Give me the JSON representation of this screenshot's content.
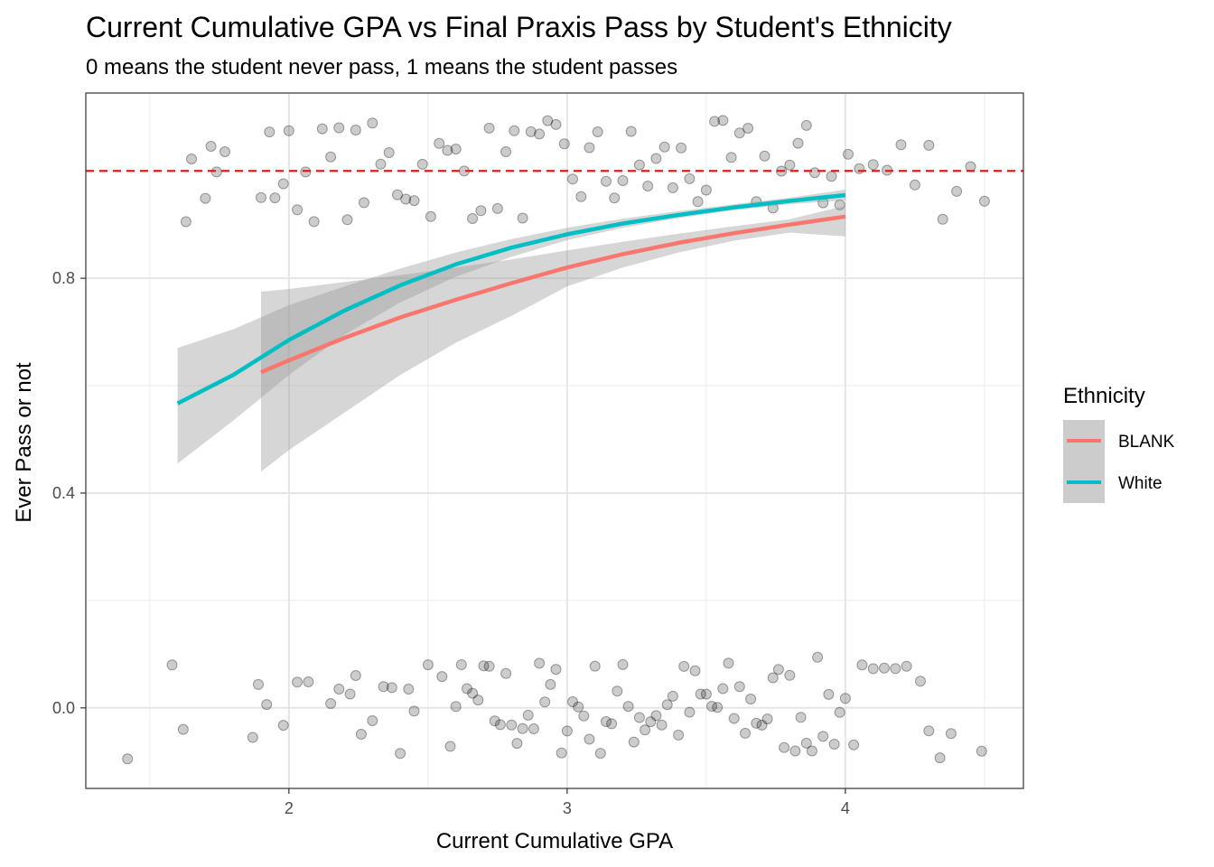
{
  "chart_data": {
    "type": "scatter",
    "title": "Current Cumulative GPA vs Final Praxis Pass by Student's Ethnicity",
    "subtitle": "0 means the student never pass, 1 means the student passes",
    "xlabel": "Current Cumulative GPA",
    "ylabel": "Ever Pass or not",
    "xlim": [
      1.27,
      4.64
    ],
    "ylim": [
      -0.15,
      1.145
    ],
    "x_ticks": [
      2,
      3,
      4
    ],
    "y_ticks": [
      0.0,
      0.4,
      0.8
    ],
    "x_tick_labels": [
      "2",
      "3",
      "4"
    ],
    "y_tick_labels": [
      "0.0",
      "0.4",
      "0.8"
    ],
    "grid": true,
    "reference_line": {
      "y": 1.0,
      "style": "dashed",
      "color": "#e41a1c"
    },
    "point_color": "#000000",
    "point_opacity": 0.2,
    "jitter_height": 0.1,
    "points_outcome_0_gpa": [
      1.42,
      1.58,
      1.62,
      1.87,
      1.89,
      1.92,
      1.98,
      2.03,
      2.07,
      2.15,
      2.18,
      2.22,
      2.24,
      2.26,
      2.3,
      2.34,
      2.37,
      2.4,
      2.43,
      2.45,
      2.5,
      2.55,
      2.58,
      2.6,
      2.62,
      2.64,
      2.66,
      2.68,
      2.7,
      2.72,
      2.74,
      2.76,
      2.78,
      2.8,
      2.82,
      2.84,
      2.86,
      2.88,
      2.9,
      2.92,
      2.94,
      2.96,
      2.98,
      3.0,
      3.02,
      3.04,
      3.06,
      3.08,
      3.1,
      3.12,
      3.14,
      3.16,
      3.18,
      3.2,
      3.22,
      3.24,
      3.26,
      3.28,
      3.3,
      3.32,
      3.34,
      3.36,
      3.38,
      3.4,
      3.42,
      3.44,
      3.46,
      3.48,
      3.5,
      3.52,
      3.54,
      3.56,
      3.58,
      3.6,
      3.62,
      3.64,
      3.66,
      3.68,
      3.7,
      3.72,
      3.74,
      3.76,
      3.78,
      3.8,
      3.82,
      3.84,
      3.86,
      3.88,
      3.9,
      3.92,
      3.94,
      3.96,
      3.98,
      4.0,
      4.03,
      4.06,
      4.1,
      4.14,
      4.18,
      4.22,
      4.27,
      4.3,
      4.34,
      4.38,
      4.49
    ],
    "points_outcome_1_gpa": [
      1.63,
      1.65,
      1.7,
      1.72,
      1.74,
      1.77,
      1.9,
      1.93,
      1.95,
      1.98,
      2.0,
      2.03,
      2.06,
      2.09,
      2.12,
      2.15,
      2.18,
      2.21,
      2.24,
      2.27,
      2.3,
      2.33,
      2.36,
      2.39,
      2.42,
      2.45,
      2.48,
      2.51,
      2.54,
      2.57,
      2.6,
      2.63,
      2.66,
      2.69,
      2.72,
      2.75,
      2.78,
      2.81,
      2.84,
      2.87,
      2.9,
      2.93,
      2.96,
      2.99,
      3.02,
      3.05,
      3.08,
      3.11,
      3.14,
      3.17,
      3.2,
      3.23,
      3.26,
      3.29,
      3.32,
      3.35,
      3.38,
      3.41,
      3.44,
      3.47,
      3.5,
      3.53,
      3.56,
      3.59,
      3.62,
      3.65,
      3.68,
      3.71,
      3.74,
      3.77,
      3.8,
      3.83,
      3.86,
      3.89,
      3.92,
      3.95,
      3.98,
      4.01,
      4.05,
      4.1,
      4.15,
      4.2,
      4.25,
      4.3,
      4.35,
      4.4,
      4.45,
      4.5
    ],
    "series": [
      {
        "name": "BLANK",
        "color": "#f8766d",
        "x": [
          1.9,
          2.0,
          2.2,
          2.4,
          2.6,
          2.8,
          3.0,
          3.2,
          3.4,
          3.6,
          3.8,
          4.0
        ],
        "y": [
          0.625,
          0.647,
          0.689,
          0.727,
          0.76,
          0.791,
          0.82,
          0.845,
          0.866,
          0.884,
          0.9,
          0.915
        ],
        "ci_lower": [
          0.44,
          0.48,
          0.55,
          0.62,
          0.68,
          0.73,
          0.785,
          0.82,
          0.848,
          0.87,
          0.885,
          0.878
        ],
        "ci_upper": [
          0.775,
          0.78,
          0.793,
          0.806,
          0.82,
          0.835,
          0.852,
          0.868,
          0.883,
          0.897,
          0.91,
          0.935
        ]
      },
      {
        "name": "White",
        "color": "#00bfc4",
        "x": [
          1.6,
          1.8,
          2.0,
          2.2,
          2.4,
          2.6,
          2.8,
          3.0,
          3.2,
          3.4,
          3.6,
          3.8,
          4.0
        ],
        "y": [
          0.567,
          0.62,
          0.685,
          0.74,
          0.787,
          0.826,
          0.857,
          0.882,
          0.902,
          0.918,
          0.932,
          0.944,
          0.955
        ],
        "ci_lower": [
          0.455,
          0.535,
          0.62,
          0.695,
          0.755,
          0.803,
          0.84,
          0.871,
          0.894,
          0.912,
          0.927,
          0.938,
          0.945
        ],
        "ci_upper": [
          0.67,
          0.705,
          0.75,
          0.785,
          0.818,
          0.848,
          0.873,
          0.894,
          0.911,
          0.925,
          0.938,
          0.95,
          0.965
        ]
      }
    ],
    "legend": {
      "title": "Ethnicity",
      "placement": "right",
      "entries": [
        "BLANK",
        "White"
      ]
    }
  }
}
